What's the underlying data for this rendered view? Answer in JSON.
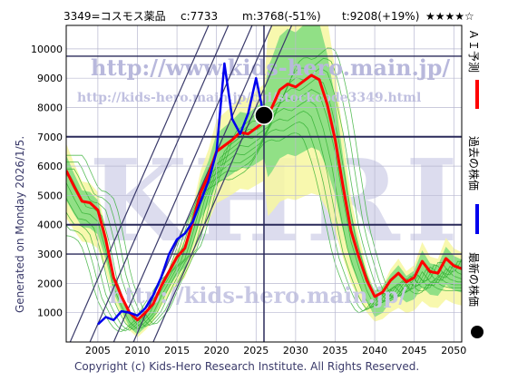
{
  "header": {
    "title": "3349=コスモス薬品",
    "current": "c:7733",
    "min": "m:3768(-51%)",
    "target": "t:9208(+19%)",
    "rating": "★★★★☆"
  },
  "watermarks": {
    "url1": "http://www.kids-hero.main.jp/",
    "url2": "http://kids-hero.main.jp/cgi/stockcode3349.html",
    "url3": "http://kids-hero.main.jp/",
    "big": "KHRI"
  },
  "generated_label": "Generated on Monday 2026/1/5.",
  "copyright": "Copyright (c) Kids-Hero Research Institute. All Rights Reserved.",
  "legend": {
    "ai": "ＡＩ予測",
    "past": "過去の株価",
    "latest": "最新の株価"
  },
  "colors": {
    "ai": "#ff0000",
    "past": "#0000ee",
    "latest": "#000000",
    "band_yellow": "#f7f7a0",
    "band_green": "#7fdc7f",
    "sim_line": "#2fae2f",
    "grid_dark": "#2a2a5a",
    "channel": "#3a3a6a"
  },
  "chart_data": {
    "type": "line",
    "xlim": [
      2001,
      2051
    ],
    "ylim": [
      0,
      10800
    ],
    "x_ticks": [
      2005,
      2010,
      2015,
      2020,
      2025,
      2030,
      2035,
      2040,
      2045,
      2050
    ],
    "y_ticks": [
      1000,
      2000,
      3000,
      4000,
      5000,
      6000,
      7000,
      8000,
      9000,
      10000
    ],
    "hlines_heavy": [
      7000,
      4000
    ],
    "hlines_medium": [
      9750,
      3000
    ],
    "vline": 2026,
    "latest_point": {
      "x": 2026,
      "y": 7733
    },
    "series": [
      {
        "name": "ＡＩ予測",
        "x": [
          2001,
          2002,
          2003,
          2004,
          2005,
          2006,
          2007,
          2008,
          2009,
          2010,
          2011,
          2012,
          2013,
          2014,
          2015,
          2016,
          2017,
          2018,
          2019,
          2020,
          2021,
          2022,
          2023,
          2024,
          2025,
          2026,
          2027,
          2028,
          2029,
          2030,
          2031,
          2032,
          2033,
          2034,
          2035,
          2036,
          2037,
          2038,
          2039,
          2040,
          2041,
          2042,
          2043,
          2044,
          2045,
          2046,
          2047,
          2048,
          2049,
          2050,
          2051
        ],
        "values": [
          5850,
          5300,
          4800,
          4750,
          4500,
          3500,
          2200,
          1550,
          1000,
          750,
          1000,
          1300,
          1900,
          2400,
          2900,
          3200,
          4100,
          5100,
          5700,
          6500,
          6700,
          6900,
          7150,
          7100,
          7300,
          7500,
          8000,
          8600,
          8800,
          8700,
          8900,
          9100,
          8950,
          8100,
          6900,
          5300,
          3800,
          2900,
          2100,
          1550,
          1700,
          2100,
          2350,
          2050,
          2200,
          2750,
          2400,
          2350,
          2850,
          2600,
          2500
        ]
      },
      {
        "name": "過去の株価",
        "x": [
          2005,
          2006,
          2007,
          2008,
          2009,
          2010,
          2011,
          2012,
          2013,
          2014,
          2015,
          2016,
          2017,
          2018,
          2019,
          2020,
          2021,
          2022,
          2023,
          2024,
          2025,
          2026
        ],
        "values": [
          600,
          850,
          750,
          1050,
          1000,
          900,
          1150,
          1600,
          2200,
          3000,
          3500,
          3700,
          4100,
          4800,
          5500,
          6500,
          9500,
          7600,
          7100,
          7800,
          9000,
          7700
        ]
      }
    ]
  }
}
